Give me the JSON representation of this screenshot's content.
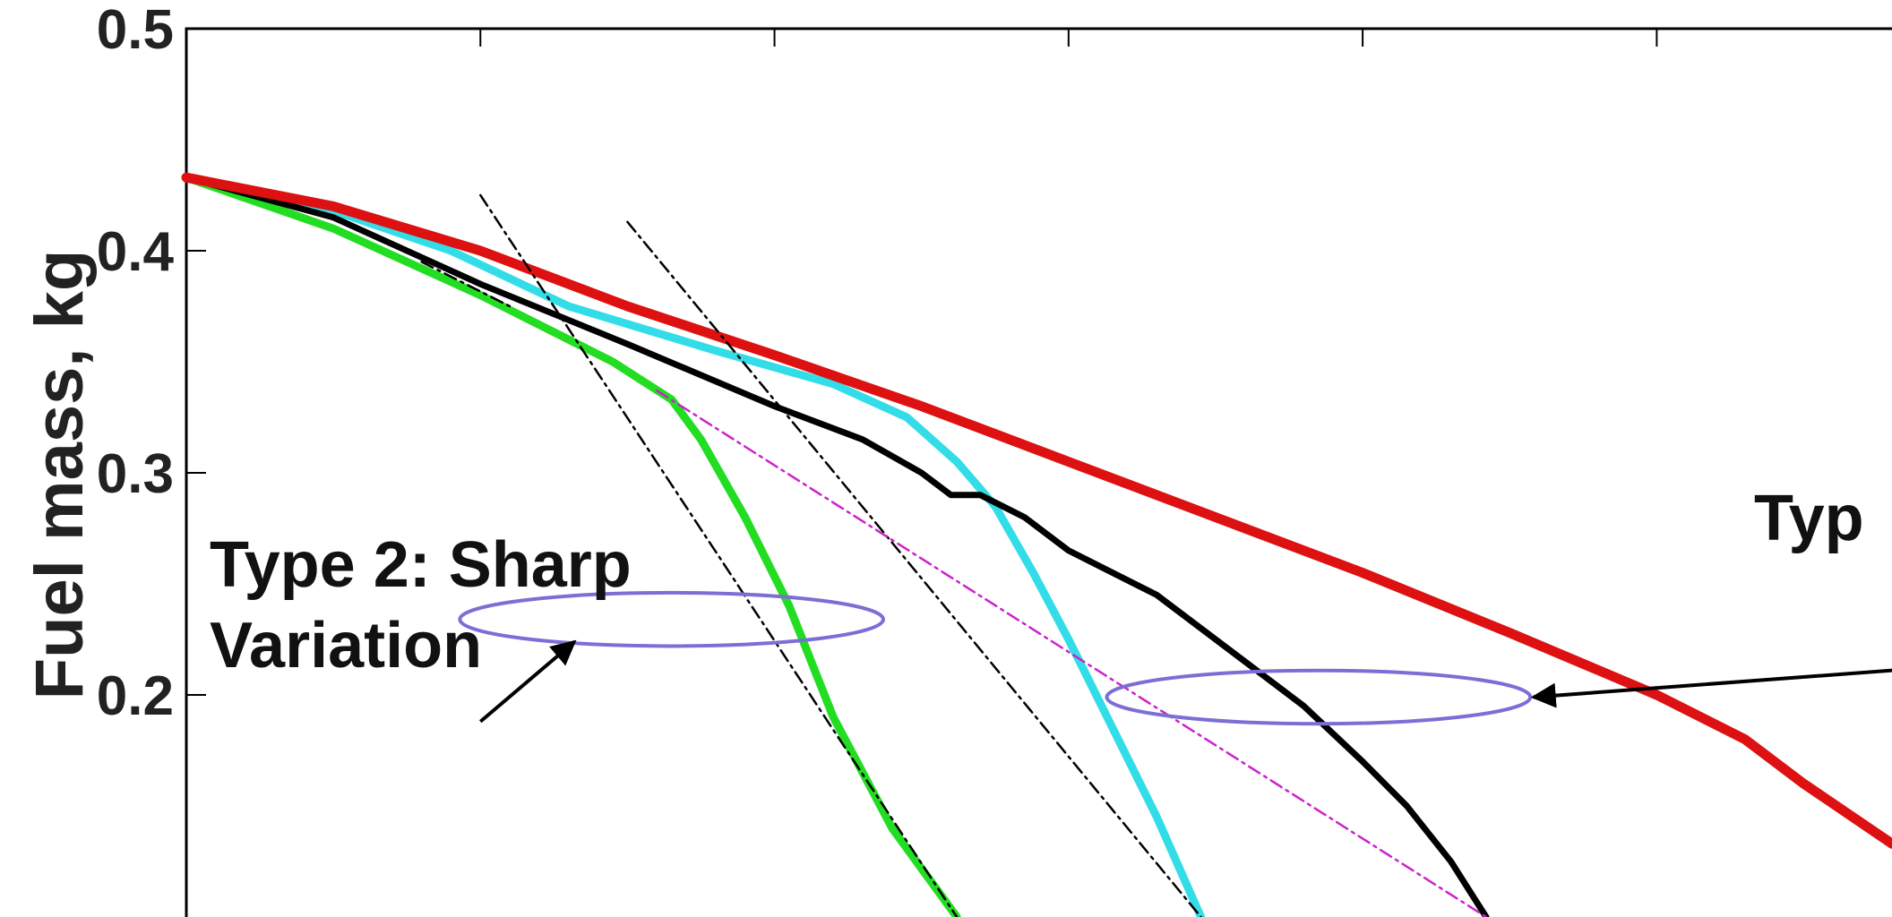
{
  "chart_data": {
    "type": "line",
    "title": "",
    "xlabel": "",
    "ylabel": "Fuel mass, kg",
    "xlim": [
      0,
      5.8
    ],
    "ylim": [
      0.1,
      0.5
    ],
    "yticks": [
      {
        "value": 0.5,
        "label": "0.5"
      },
      {
        "value": 0.4,
        "label": "0.4"
      },
      {
        "value": 0.3,
        "label": "0.3"
      },
      {
        "value": 0.2,
        "label": "0.2"
      }
    ],
    "xticks": [
      1,
      2,
      3,
      4,
      5
    ],
    "grid": false,
    "series": [
      {
        "color": "#22dd22",
        "width": 9,
        "points": [
          [
            0,
            0.433
          ],
          [
            0.5,
            0.41
          ],
          [
            1.0,
            0.38
          ],
          [
            1.45,
            0.35
          ],
          [
            1.65,
            0.333
          ],
          [
            1.75,
            0.315
          ],
          [
            1.9,
            0.28
          ],
          [
            2.05,
            0.24
          ],
          [
            2.2,
            0.19
          ],
          [
            2.4,
            0.14
          ],
          [
            2.62,
            0.1
          ]
        ]
      },
      {
        "color": "#33dde8",
        "width": 9,
        "points": [
          [
            0,
            0.433
          ],
          [
            0.5,
            0.418
          ],
          [
            0.9,
            0.4
          ],
          [
            1.3,
            0.375
          ],
          [
            1.8,
            0.355
          ],
          [
            2.2,
            0.34
          ],
          [
            2.45,
            0.325
          ],
          [
            2.62,
            0.305
          ],
          [
            2.75,
            0.285
          ],
          [
            2.88,
            0.255
          ],
          [
            3.0,
            0.225
          ],
          [
            3.15,
            0.185
          ],
          [
            3.3,
            0.145
          ],
          [
            3.45,
            0.1
          ]
        ]
      },
      {
        "color": "#000000",
        "width": 7,
        "points": [
          [
            0,
            0.433
          ],
          [
            0.5,
            0.415
          ],
          [
            1.0,
            0.385
          ],
          [
            1.5,
            0.358
          ],
          [
            2.0,
            0.33
          ],
          [
            2.3,
            0.315
          ],
          [
            2.5,
            0.3
          ],
          [
            2.6,
            0.29
          ],
          [
            2.7,
            0.29
          ],
          [
            2.85,
            0.28
          ],
          [
            3.0,
            0.265
          ],
          [
            3.3,
            0.245
          ],
          [
            3.6,
            0.215
          ],
          [
            3.8,
            0.195
          ],
          [
            4.0,
            0.17
          ],
          [
            4.15,
            0.15
          ],
          [
            4.3,
            0.125
          ],
          [
            4.42,
            0.1
          ]
        ]
      },
      {
        "color": "#dd1111",
        "width": 11,
        "points": [
          [
            0,
            0.433
          ],
          [
            0.5,
            0.42
          ],
          [
            1.0,
            0.4
          ],
          [
            1.5,
            0.375
          ],
          [
            2.0,
            0.353
          ],
          [
            2.5,
            0.33
          ],
          [
            3.0,
            0.305
          ],
          [
            3.5,
            0.28
          ],
          [
            4.0,
            0.255
          ],
          [
            4.5,
            0.228
          ],
          [
            5.0,
            0.2
          ],
          [
            5.3,
            0.18
          ],
          [
            5.5,
            0.16
          ],
          [
            5.8,
            0.133
          ]
        ]
      }
    ],
    "fit_lines": [
      {
        "color": "#000000",
        "dash": "14,6,3,6",
        "points": [
          [
            0.8,
            0.395
          ],
          [
            1.1,
            0.375
          ]
        ]
      },
      {
        "color": "#000000",
        "dash": "14,6,3,6",
        "points": [
          [
            1.0,
            0.425
          ],
          [
            2.62,
            0.1
          ]
        ]
      },
      {
        "color": "#000000",
        "dash": "14,6,3,6",
        "points": [
          [
            1.5,
            0.413
          ],
          [
            3.45,
            0.1
          ]
        ]
      },
      {
        "color": "#cc22cc",
        "dash": "14,6,3,6",
        "points": [
          [
            1.6,
            0.337
          ],
          [
            4.42,
            0.1
          ]
        ]
      }
    ],
    "ellipses": [
      {
        "cx": 1.65,
        "cy": 0.234,
        "rx": 0.72,
        "ry": 0.012
      },
      {
        "cx": 3.85,
        "cy": 0.199,
        "rx": 0.72,
        "ry": 0.012
      }
    ],
    "annotations": [
      {
        "lines": [
          "Type 2: Sharp",
          "Variation"
        ]
      },
      {
        "lines": [
          "Typ"
        ]
      }
    ],
    "arrows": [
      {
        "from": [
          1.0,
          0.188
        ],
        "to": [
          1.32,
          0.224
        ]
      },
      {
        "from": [
          6.0,
          0.213
        ],
        "to": [
          4.58,
          0.199
        ]
      }
    ]
  }
}
